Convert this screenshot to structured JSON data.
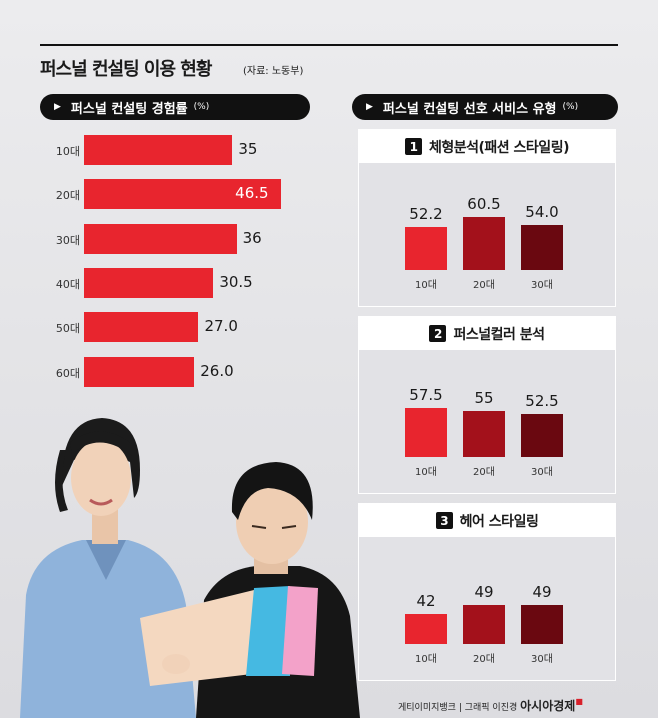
{
  "header": {
    "title": "퍼스널 컨설팅 이용 현황",
    "source": "(자료: 노동부)"
  },
  "left_pill": {
    "label": "퍼스널 컨설팅 경험률",
    "unit": "(%)"
  },
  "right_pill": {
    "label": "퍼스널 컨설팅 선호 서비스 유형",
    "unit": "(%)"
  },
  "panels": [
    {
      "num": "1",
      "title": "체형분석(패션 스타일링)"
    },
    {
      "num": "2",
      "title": "퍼스널컬러 분석"
    },
    {
      "num": "3",
      "title": "헤어 스타일링"
    }
  ],
  "credit": {
    "text": "게티이미지뱅크 | 그래픽 이진경",
    "logo": "아시아경제"
  },
  "colors": {
    "accent": "#e8252e",
    "bar20": "#a3111b",
    "bar30": "#6a0810",
    "background": "#e6e6e8"
  },
  "chart_data": [
    {
      "type": "bar",
      "orientation": "horizontal",
      "title": "퍼스널 컨설팅 경험률",
      "unit": "(%)",
      "categories": [
        "10대",
        "20대",
        "30대",
        "40대",
        "50대",
        "60대"
      ],
      "values": [
        35,
        46.5,
        36,
        30.5,
        27.0,
        26.0
      ],
      "value_labels": [
        "35",
        "46.5",
        "36",
        "30.5",
        "27.0",
        "26.0"
      ],
      "xlim": [
        0,
        50
      ],
      "grid": false
    },
    {
      "type": "bar",
      "title": "체형분석(패션 스타일링)",
      "unit": "(%)",
      "categories": [
        "10대",
        "20대",
        "30대"
      ],
      "values": [
        52.2,
        60.5,
        54.0
      ],
      "value_labels": [
        "52.2",
        "60.5",
        "54.0"
      ],
      "ylim": [
        0,
        70
      ],
      "grid": false
    },
    {
      "type": "bar",
      "title": "퍼스널컬러 분석",
      "unit": "(%)",
      "categories": [
        "10대",
        "20대",
        "30대"
      ],
      "values": [
        57.5,
        55,
        52.5
      ],
      "value_labels": [
        "57.5",
        "55",
        "52.5"
      ],
      "ylim": [
        0,
        70
      ],
      "grid": false
    },
    {
      "type": "bar",
      "title": "헤어 스타일링",
      "unit": "(%)",
      "categories": [
        "10대",
        "20대",
        "30대"
      ],
      "values": [
        42,
        49,
        49
      ],
      "value_labels": [
        "42",
        "49",
        "49"
      ],
      "ylim": [
        0,
        70
      ],
      "grid": false
    }
  ]
}
